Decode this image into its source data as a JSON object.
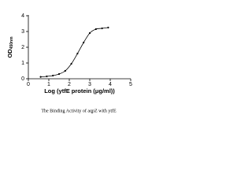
{
  "chart_data": {
    "type": "scatter",
    "x_label": "Log (ytfE protein (μg/ml))",
    "y_label": "OD",
    "y_label_sub": "450nm",
    "caption": "The Binding Activity of aqpZ with ytfE",
    "series": [
      {
        "color": "#000000",
        "x": [
          0.6,
          0.9,
          1.2,
          1.5,
          1.8,
          2.1,
          2.4,
          2.7,
          3.0,
          3.3,
          3.6,
          3.9
        ],
        "values": [
          0.12,
          0.15,
          0.2,
          0.3,
          0.5,
          0.95,
          1.6,
          2.3,
          2.9,
          3.15,
          3.2,
          3.25
        ]
      }
    ],
    "xlim": [
      0,
      5
    ],
    "xticks": [
      0,
      1,
      2,
      3,
      4,
      5
    ],
    "ylim": [
      0,
      4
    ],
    "yticks": [
      0,
      1,
      2,
      3,
      4
    ],
    "grid": false,
    "fit_line": true
  }
}
